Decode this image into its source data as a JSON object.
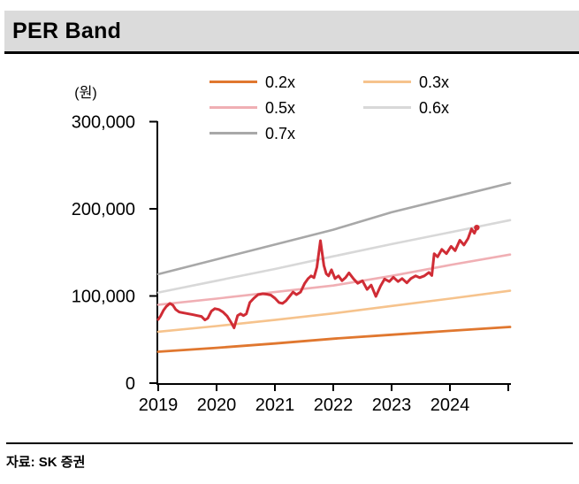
{
  "title": "PER Band",
  "source": "자료: SK 증권",
  "chart_data": {
    "type": "line",
    "title": "PER Band",
    "y_unit": "(원)",
    "x_range": [
      2019,
      2025.03
    ],
    "y_range": [
      0,
      300000
    ],
    "grid": false,
    "legend_position": "top",
    "axis_color": "#000000",
    "x_ticks": [
      {
        "value": 2019,
        "label": "2019"
      },
      {
        "value": 2020,
        "label": "2020"
      },
      {
        "value": 2021,
        "label": "2021"
      },
      {
        "value": 2022,
        "label": "2022"
      },
      {
        "value": 2023,
        "label": "2023"
      },
      {
        "value": 2024,
        "label": "2024"
      },
      {
        "value": 2025,
        "label": ""
      }
    ],
    "y_ticks": [
      {
        "value": 0,
        "label": "0"
      },
      {
        "value": 100000,
        "label": "100,000"
      },
      {
        "value": 200000,
        "label": "200,000"
      },
      {
        "value": 300000,
        "label": "300,000"
      }
    ],
    "legend": [
      {
        "label": "0.2x",
        "color": "#E0772F"
      },
      {
        "label": "0.3x",
        "color": "#F6C38D"
      },
      {
        "label": "0.5x",
        "color": "#F0AFB4"
      },
      {
        "label": "0.6x",
        "color": "#D8D8D8"
      },
      {
        "label": "0.7x",
        "color": "#A8A8A8"
      }
    ],
    "series": [
      {
        "name": "0.7x",
        "color": "#A8A8A8",
        "width": 2.6,
        "points": [
          [
            2019,
            125000
          ],
          [
            2020,
            142000
          ],
          [
            2021,
            159000
          ],
          [
            2022,
            176000
          ],
          [
            2023,
            196000
          ],
          [
            2024,
            212500
          ],
          [
            2025.03,
            229500
          ]
        ]
      },
      {
        "name": "0.6x",
        "color": "#D8D8D8",
        "width": 2.6,
        "points": [
          [
            2019,
            104000
          ],
          [
            2020,
            117500
          ],
          [
            2021,
            131000
          ],
          [
            2022,
            145500
          ],
          [
            2023,
            159500
          ],
          [
            2024,
            173000
          ],
          [
            2025.03,
            187000
          ]
        ]
      },
      {
        "name": "0.5x",
        "color": "#F0AFB4",
        "width": 2.6,
        "points": [
          [
            2019,
            90000
          ],
          [
            2020,
            97000
          ],
          [
            2021,
            104500
          ],
          [
            2022,
            112000
          ],
          [
            2023,
            123000
          ],
          [
            2024,
            135500
          ],
          [
            2025.03,
            147500
          ]
        ]
      },
      {
        "name": "0.3x",
        "color": "#F6C38D",
        "width": 2.6,
        "points": [
          [
            2019,
            59000
          ],
          [
            2020,
            65500
          ],
          [
            2021,
            72500
          ],
          [
            2022,
            80000
          ],
          [
            2023,
            88500
          ],
          [
            2024,
            97000
          ],
          [
            2025.03,
            106000
          ]
        ]
      },
      {
        "name": "0.2x",
        "color": "#E0772F",
        "width": 2.8,
        "points": [
          [
            2019,
            36000
          ],
          [
            2020,
            40500
          ],
          [
            2021,
            45500
          ],
          [
            2022,
            51000
          ],
          [
            2023,
            55500
          ],
          [
            2024,
            60000
          ],
          [
            2025.03,
            64500
          ]
        ]
      },
      {
        "name": "price",
        "color": "#D02C35",
        "width": 3,
        "end_dot": true,
        "points": [
          [
            2019.0,
            73000
          ],
          [
            2019.04,
            77000
          ],
          [
            2019.09,
            83500
          ],
          [
            2019.14,
            88000
          ],
          [
            2019.2,
            91500
          ],
          [
            2019.25,
            89500
          ],
          [
            2019.3,
            84500
          ],
          [
            2019.36,
            81500
          ],
          [
            2019.44,
            80500
          ],
          [
            2019.52,
            79500
          ],
          [
            2019.6,
            78500
          ],
          [
            2019.67,
            77500
          ],
          [
            2019.74,
            76500
          ],
          [
            2019.8,
            72500
          ],
          [
            2019.85,
            74500
          ],
          [
            2019.91,
            82500
          ],
          [
            2019.97,
            85500
          ],
          [
            2020.04,
            84500
          ],
          [
            2020.11,
            81500
          ],
          [
            2020.18,
            77000
          ],
          [
            2020.25,
            69500
          ],
          [
            2020.3,
            63500
          ],
          [
            2020.36,
            77500
          ],
          [
            2020.41,
            79500
          ],
          [
            2020.46,
            77500
          ],
          [
            2020.51,
            79500
          ],
          [
            2020.57,
            92500
          ],
          [
            2020.64,
            97500
          ],
          [
            2020.71,
            101500
          ],
          [
            2020.79,
            102500
          ],
          [
            2020.86,
            102000
          ],
          [
            2020.93,
            101000
          ],
          [
            2021.0,
            97500
          ],
          [
            2021.07,
            92500
          ],
          [
            2021.13,
            91500
          ],
          [
            2021.19,
            94500
          ],
          [
            2021.25,
            99500
          ],
          [
            2021.31,
            104500
          ],
          [
            2021.37,
            101500
          ],
          [
            2021.44,
            104500
          ],
          [
            2021.51,
            114500
          ],
          [
            2021.57,
            120000
          ],
          [
            2021.62,
            123000
          ],
          [
            2021.67,
            121000
          ],
          [
            2021.72,
            133000
          ],
          [
            2021.78,
            163500
          ],
          [
            2021.84,
            135000
          ],
          [
            2021.88,
            125500
          ],
          [
            2021.92,
            123000
          ],
          [
            2021.97,
            130000
          ],
          [
            2022.03,
            120000
          ],
          [
            2022.09,
            123000
          ],
          [
            2022.15,
            117500
          ],
          [
            2022.21,
            121000
          ],
          [
            2022.27,
            126500
          ],
          [
            2022.35,
            119500
          ],
          [
            2022.42,
            114500
          ],
          [
            2022.5,
            117500
          ],
          [
            2022.58,
            107500
          ],
          [
            2022.65,
            112500
          ],
          [
            2022.73,
            99500
          ],
          [
            2022.81,
            111500
          ],
          [
            2022.88,
            119500
          ],
          [
            2022.96,
            116500
          ],
          [
            2023.03,
            121500
          ],
          [
            2023.11,
            116500
          ],
          [
            2023.18,
            120000
          ],
          [
            2023.26,
            115000
          ],
          [
            2023.33,
            120000
          ],
          [
            2023.41,
            123000
          ],
          [
            2023.48,
            121000
          ],
          [
            2023.56,
            123000
          ],
          [
            2023.64,
            127000
          ],
          [
            2023.69,
            123500
          ],
          [
            2023.73,
            148500
          ],
          [
            2023.79,
            145000
          ],
          [
            2023.86,
            153500
          ],
          [
            2023.94,
            148500
          ],
          [
            2024.02,
            157000
          ],
          [
            2024.09,
            152000
          ],
          [
            2024.17,
            164000
          ],
          [
            2024.24,
            158500
          ],
          [
            2024.31,
            166000
          ],
          [
            2024.37,
            177000
          ],
          [
            2024.42,
            172000
          ],
          [
            2024.46,
            178500
          ]
        ]
      }
    ]
  }
}
